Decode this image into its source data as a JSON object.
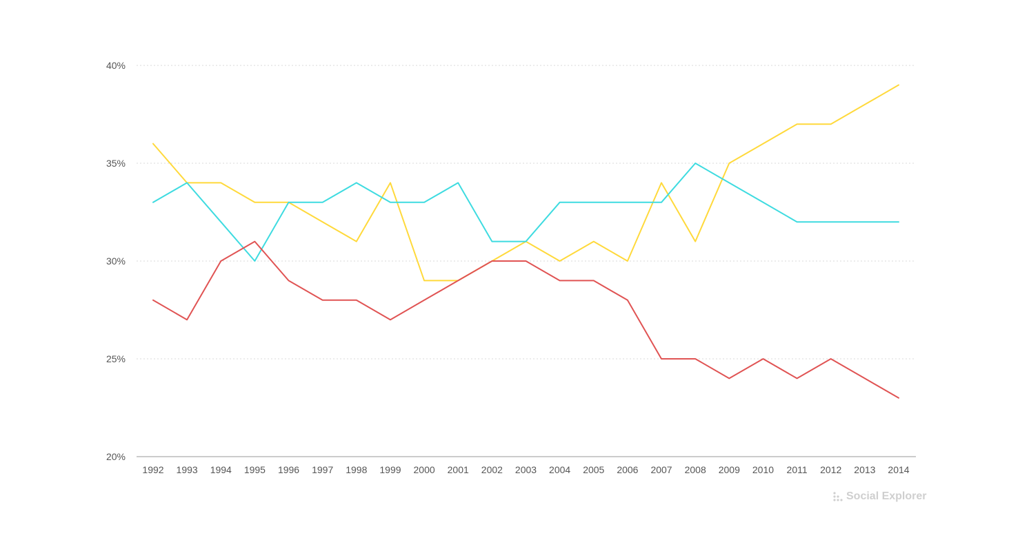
{
  "chart_data": {
    "type": "line",
    "title": "",
    "xlabel": "",
    "ylabel": "",
    "x": [
      "1992",
      "1993",
      "1994",
      "1995",
      "1996",
      "1997",
      "1998",
      "1999",
      "2000",
      "2001",
      "2002",
      "2003",
      "2004",
      "2005",
      "2006",
      "2007",
      "2008",
      "2009",
      "2010",
      "2011",
      "2012",
      "2013",
      "2014"
    ],
    "ylim": [
      20,
      40
    ],
    "yticks": [
      "20%",
      "25%",
      "30%",
      "35%",
      "40%"
    ],
    "ytick_values": [
      20,
      25,
      30,
      35,
      40
    ],
    "grid": true,
    "legend": "none",
    "series": [
      {
        "color": "#ffd93b",
        "values": [
          36,
          34,
          34,
          33,
          33,
          32,
          31,
          34,
          29,
          29,
          30,
          31,
          30,
          31,
          30,
          34,
          31,
          35,
          36,
          37,
          37,
          38,
          39
        ]
      },
      {
        "color": "#3edbe0",
        "values": [
          33,
          34,
          32,
          30,
          33,
          33,
          34,
          33,
          33,
          34,
          31,
          31,
          33,
          33,
          33,
          33,
          35,
          34,
          33,
          32,
          32,
          32,
          32
        ]
      },
      {
        "color": "#e05353",
        "values": [
          28,
          27,
          30,
          31,
          29,
          28,
          28,
          27,
          28,
          29,
          30,
          30,
          29,
          29,
          28,
          25,
          25,
          24,
          25,
          24,
          25,
          24,
          23
        ]
      }
    ]
  },
  "watermark": {
    "text": "Social Explorer",
    "icon": "dots-grid-icon",
    "color": "#cfcfcf"
  }
}
